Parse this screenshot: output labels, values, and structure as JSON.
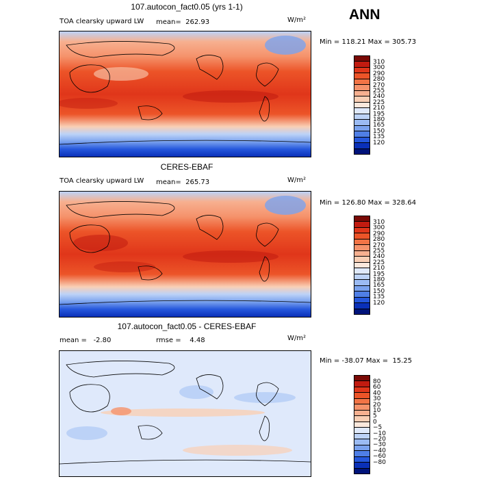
{
  "header": {
    "season": "ANN"
  },
  "panels": [
    {
      "title": "107.autocon_fact0.05 (yrs 1-1)",
      "left_label": "TOA clearsky upward LW",
      "stat_text": "mean=  262.93",
      "units": "W/m²",
      "minmax": "Min = 118.21 Max = 305.73",
      "kind": "abs"
    },
    {
      "title": "CERES-EBAF",
      "left_label": "TOA clearsky upward LW",
      "stat_text": "mean=  265.73",
      "units": "W/m²",
      "minmax": "Min = 126.80 Max = 328.64",
      "kind": "abs"
    },
    {
      "title": "107.autocon_fact0.05 - CERES-EBAF",
      "left_label": "mean =   -2.80",
      "stat_text": "rmse =    4.48",
      "units": "W/m²",
      "minmax": "Min = -38.07 Max =  15.25",
      "kind": "diff"
    }
  ],
  "colorbars": {
    "abs": {
      "ticks": [
        "310",
        "300",
        "290",
        "280",
        "270",
        "255",
        "240",
        "225",
        "210",
        "195",
        "180",
        "165",
        "150",
        "135",
        "120"
      ],
      "colors": [
        "#7a0a06",
        "#c11b10",
        "#e0361a",
        "#ec5428",
        "#f27446",
        "#f5926b",
        "#f7b090",
        "#f9cfb5",
        "#fbe8dc",
        "#dfe9fb",
        "#bcd2f7",
        "#9bbbf3",
        "#7aa2ee",
        "#4f7fe6",
        "#2557dc",
        "#0a30b8",
        "#00137a"
      ]
    },
    "diff": {
      "ticks": [
        "80",
        "60",
        "40",
        "30",
        "20",
        "10",
        "5",
        "0",
        "−5",
        "−10",
        "−20",
        "−30",
        "−40",
        "−60",
        "−80"
      ],
      "colors": [
        "#7a0a06",
        "#c11b10",
        "#e0361a",
        "#ec5428",
        "#f27446",
        "#f5926b",
        "#f7b090",
        "#f9cfb5",
        "#fbe8dc",
        "#dfe9fb",
        "#bcd2f7",
        "#9bbbf3",
        "#7aa2ee",
        "#4f7fe6",
        "#2557dc",
        "#0a30b8",
        "#00137a"
      ]
    }
  }
}
